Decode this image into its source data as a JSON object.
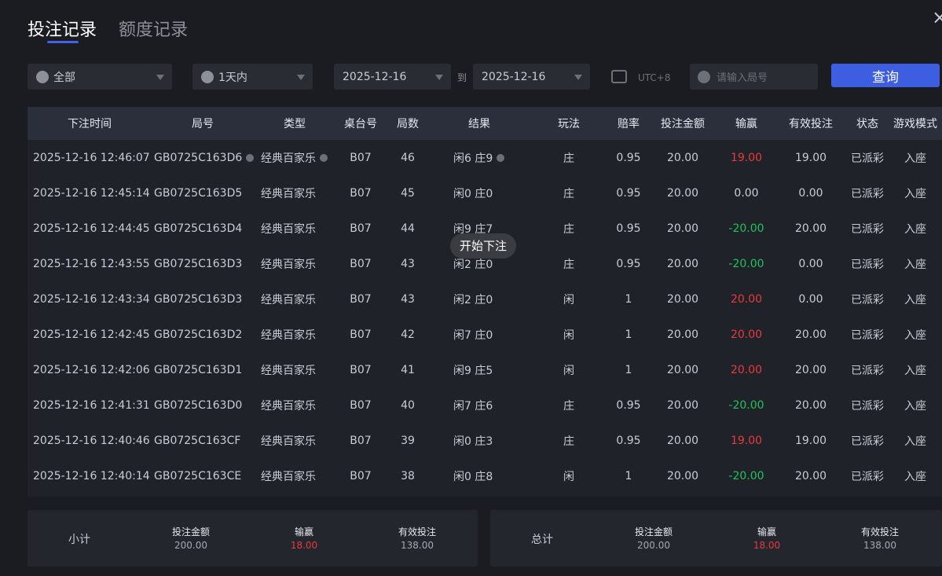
{
  "tabs": [
    "投注记录",
    "额度记录"
  ],
  "filters": {
    "game": "全部",
    "period": "1天内",
    "date_from": "2025-12-16",
    "to": "到",
    "date_to": "2025-12-16",
    "timezone": "UTC+8",
    "round_placeholder": "请输入局号",
    "query": "查询"
  },
  "table": {
    "headers": [
      "下注时间",
      "局号",
      "类型",
      "桌台号",
      "局数",
      "结果",
      "玩法",
      "赔率",
      "投注金额",
      "输赢",
      "有效投注",
      "状态",
      "游戏模式"
    ],
    "rows": [
      [
        "2025-12-16 12:46:07",
        "GB0725C163D6",
        "经典百家乐",
        "B07",
        "46",
        "闲6 庄9",
        "庄",
        "0.95",
        "20.00",
        "19.00",
        "19.00",
        "已派彩",
        "入座"
      ],
      [
        "2025-12-16 12:45:14",
        "GB0725C163D5",
        "经典百家乐",
        "B07",
        "45",
        "闲0 庄0",
        "庄",
        "0.95",
        "20.00",
        "0.00",
        "0.00",
        "已派彩",
        "入座"
      ],
      [
        "2025-12-16 12:44:45",
        "GB0725C163D4",
        "经典百家乐",
        "B07",
        "44",
        "闲9 庄7",
        "庄",
        "0.95",
        "20.00",
        "-20.00",
        "20.00",
        "已派彩",
        "入座"
      ],
      [
        "2025-12-16 12:43:55",
        "GB0725C163D3",
        "经典百家乐",
        "B07",
        "43",
        "闲2 庄0",
        "庄",
        "0.95",
        "20.00",
        "-20.00",
        "0.00",
        "已派彩",
        "入座"
      ],
      [
        "2025-12-16 12:43:34",
        "GB0725C163D3",
        "经典百家乐",
        "B07",
        "43",
        "闲2 庄0",
        "闲",
        "1",
        "20.00",
        "20.00",
        "0.00",
        "已派彩",
        "入座"
      ],
      [
        "2025-12-16 12:42:45",
        "GB0725C163D2",
        "经典百家乐",
        "B07",
        "42",
        "闲7 庄0",
        "闲",
        "1",
        "20.00",
        "20.00",
        "20.00",
        "已派彩",
        "入座"
      ],
      [
        "2025-12-16 12:42:06",
        "GB0725C163D1",
        "经典百家乐",
        "B07",
        "41",
        "闲9 庄5",
        "闲",
        "1",
        "20.00",
        "20.00",
        "20.00",
        "已派彩",
        "入座"
      ],
      [
        "2025-12-16 12:41:31",
        "GB0725C163D0",
        "经典百家乐",
        "B07",
        "40",
        "闲7 庄6",
        "庄",
        "0.95",
        "20.00",
        "-20.00",
        "20.00",
        "已派彩",
        "入座"
      ],
      [
        "2025-12-16 12:40:46",
        "GB0725C163CF",
        "经典百家乐",
        "B07",
        "39",
        "闲0 庄3",
        "庄",
        "0.95",
        "20.00",
        "19.00",
        "19.00",
        "已派彩",
        "入座"
      ],
      [
        "2025-12-16 12:40:14",
        "GB0725C163CE",
        "经典百家乐",
        "B07",
        "38",
        "闲0 庄8",
        "闲",
        "1",
        "20.00",
        "-20.00",
        "20.00",
        "已派彩",
        "入座"
      ]
    ]
  },
  "tooltip": "开始下注",
  "subtotal": {
    "label": "小计",
    "items": [
      {
        "label": "投注金额",
        "value": "200.00"
      },
      {
        "label": "输赢",
        "value": "18.00"
      },
      {
        "label": "有效投注",
        "value": "138.00"
      }
    ]
  },
  "total": {
    "label": "总计",
    "items": [
      {
        "label": "投注金额",
        "value": "200.00"
      },
      {
        "label": "输赢",
        "value": "18.00"
      },
      {
        "label": "有效投注",
        "value": "138.00"
      }
    ]
  }
}
